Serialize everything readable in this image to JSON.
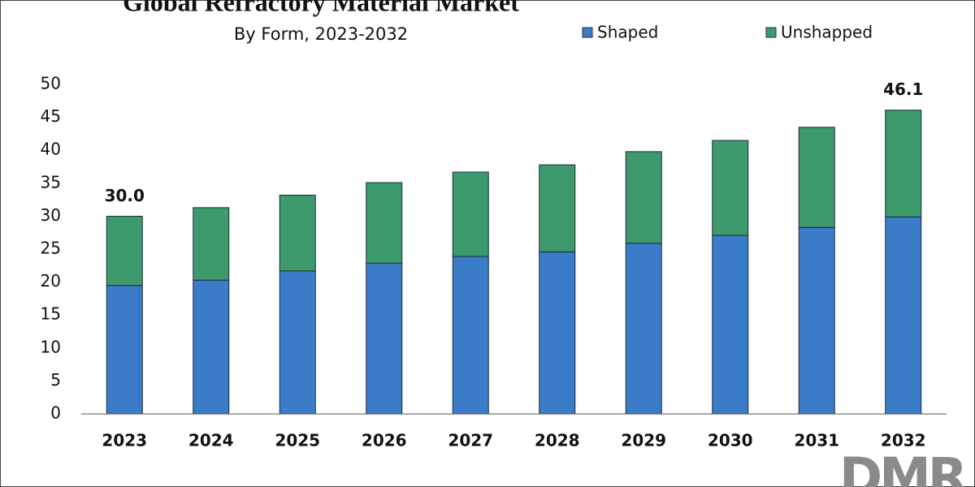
{
  "chart_data": {
    "type": "stacked_bar",
    "title": "Global Refractory Material Market",
    "subtitle": "By Form, 2023-2032",
    "logo": "DMR",
    "categories": [
      "2023",
      "2024",
      "2025",
      "2026",
      "2027",
      "2028",
      "2029",
      "2030",
      "2031",
      "2032"
    ],
    "series": [
      {
        "name": "Shaped",
        "color": "#3a7cc8",
        "values": [
          19.5,
          20.3,
          21.7,
          22.9,
          23.9,
          24.6,
          25.9,
          27.1,
          28.3,
          29.9
        ]
      },
      {
        "name": "Unshapped",
        "color": "#3d9a6c",
        "values": [
          10.5,
          11.0,
          11.5,
          12.2,
          12.8,
          13.2,
          13.9,
          14.4,
          15.2,
          16.2
        ]
      }
    ],
    "annotations": [
      {
        "x": "2023",
        "value": 30.0,
        "label": "30.0"
      },
      {
        "x": "2032",
        "value": 46.1,
        "label": "46.1"
      }
    ],
    "ylim": [
      0,
      50
    ],
    "yticks": [
      0,
      5,
      10,
      15,
      20,
      25,
      30,
      35,
      40,
      45,
      50
    ],
    "grid": false
  }
}
